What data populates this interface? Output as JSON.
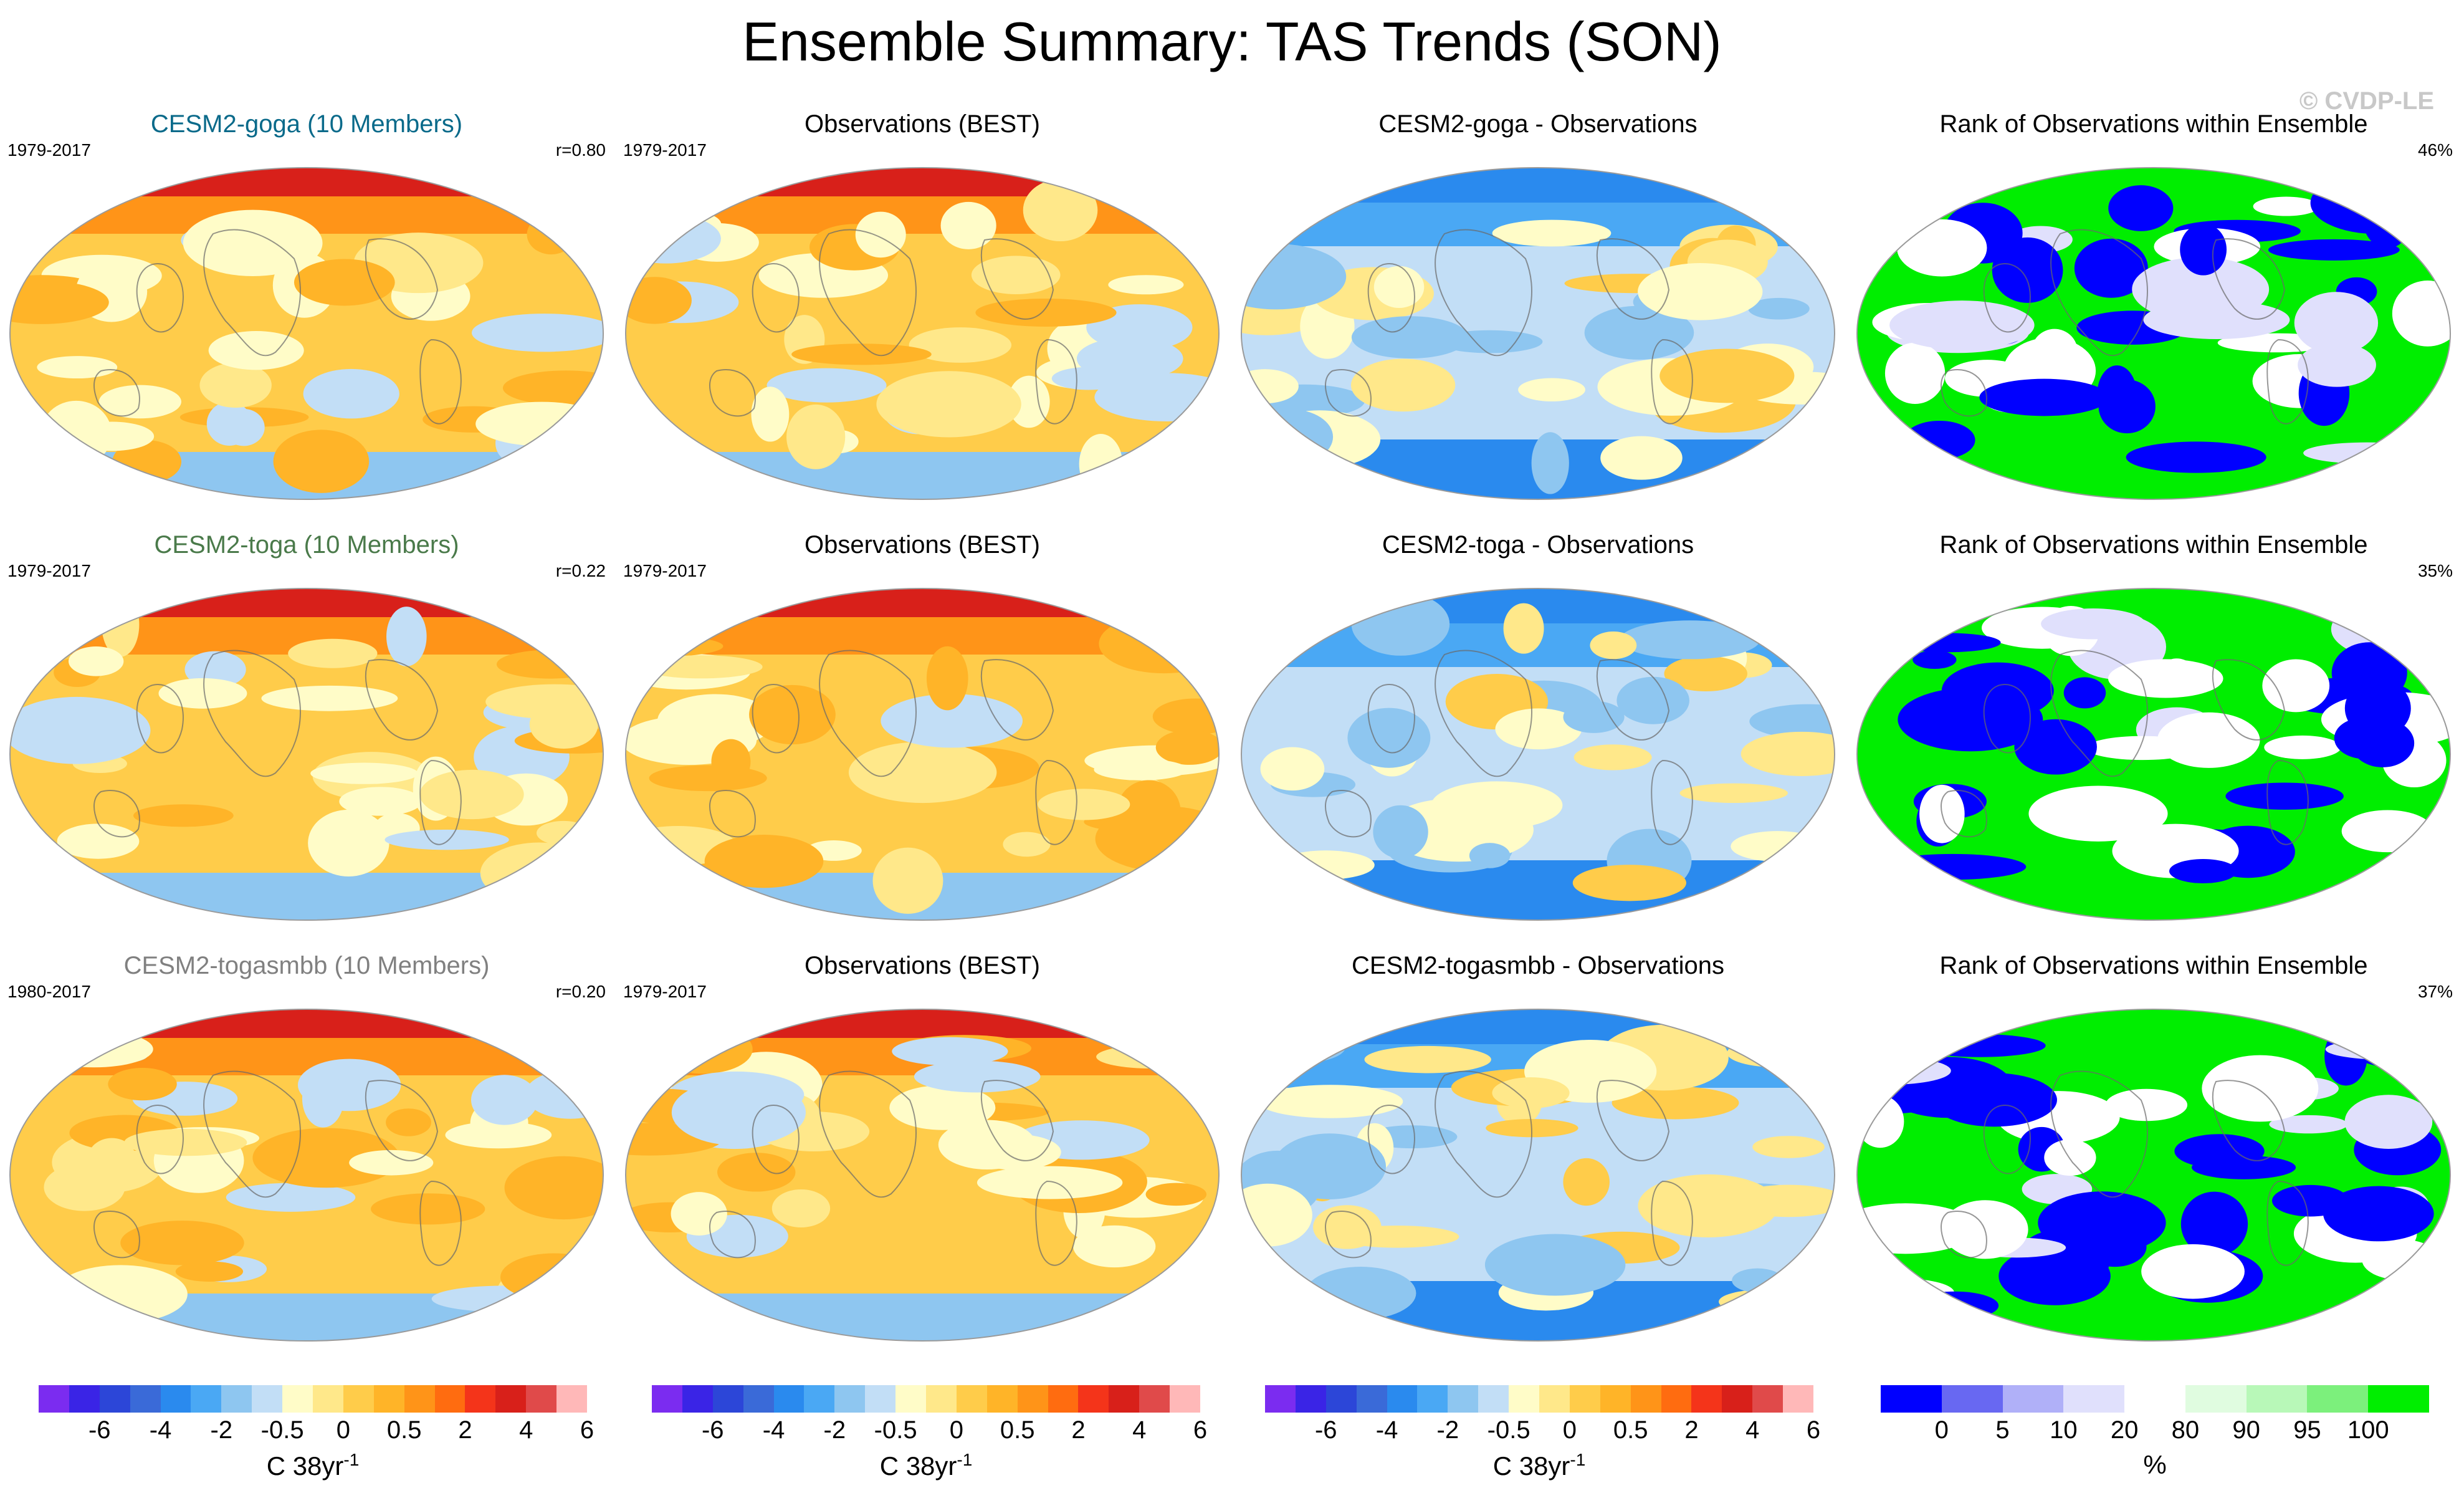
{
  "figure": {
    "title": "Ensemble Summary: TAS Trends (SON)",
    "watermark": "© CVDP-LE"
  },
  "colors": {
    "trend_scale": [
      "#7b2cf0",
      "#3a24e6",
      "#2c46d8",
      "#3a6ad8",
      "#2a8aee",
      "#4aa8f4",
      "#8ec6f0",
      "#c2def6",
      "#fffcc8",
      "#ffe88a",
      "#ffcc4a",
      "#ffb428",
      "#ff9418",
      "#ff6c10",
      "#f4341a",
      "#d8201a",
      "#e04a4a",
      "#ffb8b8"
    ],
    "rank_scale": [
      "#0000ff",
      "#6868f2",
      "#b0b0f8",
      "#e0e0fc",
      "#ffffff",
      "#e0fce0",
      "#b8f8b8",
      "#7cf07c",
      "#00ee00"
    ]
  },
  "chart_data": [
    {
      "type": "map",
      "row": 1,
      "col": 1,
      "title": "CESM2-goga (10 Members)",
      "title_color": "#0a6a8a",
      "period": "1979-2017",
      "pattern_corr": "r=0.80",
      "variable": "TAS trend",
      "season": "SON",
      "units": "C 38yr-1"
    },
    {
      "type": "map",
      "row": 1,
      "col": 2,
      "title": "Observations (BEST)",
      "period": "1979-2017",
      "variable": "TAS trend",
      "season": "SON",
      "units": "C 38yr-1"
    },
    {
      "type": "map",
      "row": 1,
      "col": 3,
      "title": "CESM2-goga - Observations",
      "variable": "TAS trend difference",
      "season": "SON",
      "units": "C 38yr-1"
    },
    {
      "type": "map",
      "row": 1,
      "col": 4,
      "title": "Rank of Observations within Ensemble",
      "percent_label": "46%",
      "units": "%"
    },
    {
      "type": "map",
      "row": 2,
      "col": 1,
      "title": "CESM2-toga (10 Members)",
      "title_color": "#4a7a4a",
      "period": "1979-2017",
      "pattern_corr": "r=0.22",
      "variable": "TAS trend",
      "season": "SON",
      "units": "C 38yr-1"
    },
    {
      "type": "map",
      "row": 2,
      "col": 2,
      "title": "Observations (BEST)",
      "period": "1979-2017",
      "variable": "TAS trend",
      "season": "SON",
      "units": "C 38yr-1"
    },
    {
      "type": "map",
      "row": 2,
      "col": 3,
      "title": "CESM2-toga - Observations",
      "variable": "TAS trend difference",
      "season": "SON",
      "units": "C 38yr-1"
    },
    {
      "type": "map",
      "row": 2,
      "col": 4,
      "title": "Rank of Observations within Ensemble",
      "percent_label": "35%",
      "units": "%"
    },
    {
      "type": "map",
      "row": 3,
      "col": 1,
      "title": "CESM2-togasmbb (10 Members)",
      "title_color": "#808080",
      "period": "1980-2017",
      "pattern_corr": "r=0.20",
      "variable": "TAS trend",
      "season": "SON",
      "units": "C 38yr-1"
    },
    {
      "type": "map",
      "row": 3,
      "col": 2,
      "title": "Observations (BEST)",
      "period": "1979-2017",
      "variable": "TAS trend",
      "season": "SON",
      "units": "C 38yr-1"
    },
    {
      "type": "map",
      "row": 3,
      "col": 3,
      "title": "CESM2-togasmbb - Observations",
      "variable": "TAS trend difference",
      "season": "SON",
      "units": "C 38yr-1"
    },
    {
      "type": "map",
      "row": 3,
      "col": 4,
      "title": "Rank of Observations within Ensemble",
      "percent_label": "37%",
      "units": "%"
    }
  ],
  "colorbars": [
    {
      "ticks": [
        "-6",
        "-4",
        "-2",
        "-0.5",
        "0",
        "0.5",
        "2",
        "4",
        "6"
      ],
      "units": "C 38yr",
      "units_exp": "-1"
    },
    {
      "ticks": [
        "-6",
        "-4",
        "-2",
        "-0.5",
        "0",
        "0.5",
        "2",
        "4",
        "6"
      ],
      "units": "C 38yr",
      "units_exp": "-1"
    },
    {
      "ticks": [
        "-6",
        "-4",
        "-2",
        "-0.5",
        "0",
        "0.5",
        "2",
        "4",
        "6"
      ],
      "units": "C 38yr",
      "units_exp": "-1"
    },
    {
      "ticks": [
        "0",
        "5",
        "10",
        "20",
        "80",
        "90",
        "95",
        "100"
      ],
      "units": "%"
    }
  ]
}
